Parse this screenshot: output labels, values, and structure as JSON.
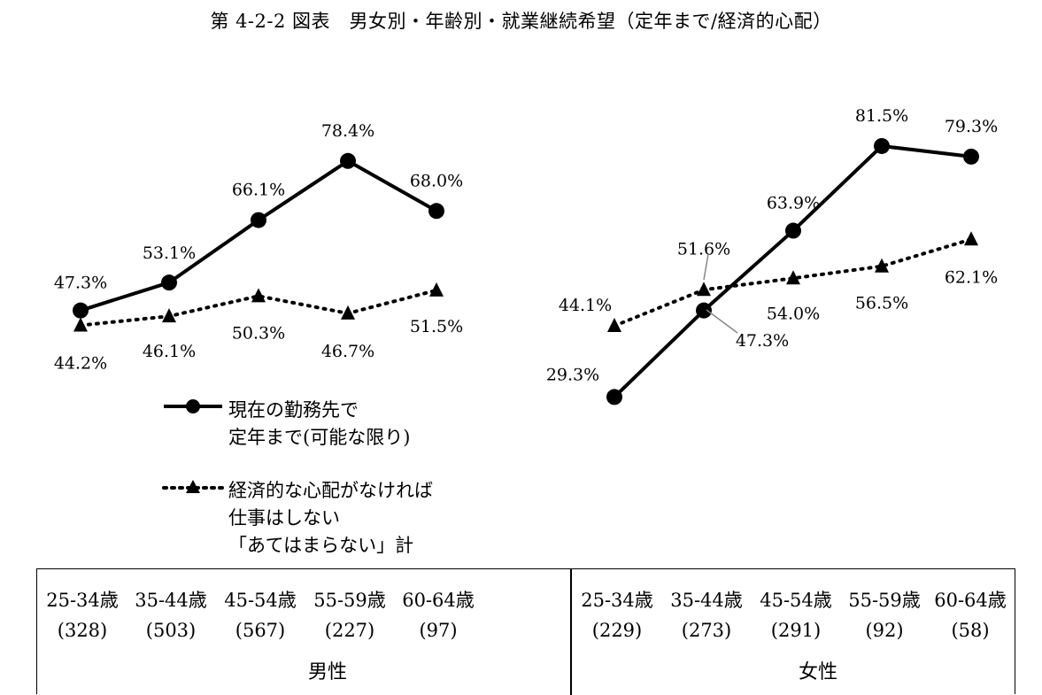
{
  "title": "第 4-2-2 図表　男女別・年齢別・就業継続希望（定年まで/経済的心配）",
  "legend": {
    "series1_line1": "現在の勤務先で",
    "series1_line2": "定年まで(可能な限り)",
    "series2_line1": "経済的な心配がなければ",
    "series2_line2": "仕事はしない",
    "series2_line3": "「あてはまらない」計"
  },
  "table": {
    "male": {
      "label": "男性",
      "categories": [
        {
          "age": "25-34歳",
          "n": "(328)"
        },
        {
          "age": "35-44歳",
          "n": "(503)"
        },
        {
          "age": "45-54歳",
          "n": "(567)"
        },
        {
          "age": "55-59歳",
          "n": "(227)"
        },
        {
          "age": "60-64歳",
          "n": "(97)"
        }
      ]
    },
    "female": {
      "label": "女性",
      "categories": [
        {
          "age": "25-34歳",
          "n": "(229)"
        },
        {
          "age": "35-44歳",
          "n": "(273)"
        },
        {
          "age": "45-54歳",
          "n": "(291)"
        },
        {
          "age": "55-59歳",
          "n": "(92)"
        },
        {
          "age": "60-64歳",
          "n": "(58)"
        }
      ]
    }
  },
  "chart_data": [
    {
      "type": "line",
      "panel": "男性",
      "categories": [
        "25-34歳",
        "35-44歳",
        "45-54歳",
        "55-59歳",
        "60-64歳"
      ],
      "series": [
        {
          "name": "現在の勤務先で定年まで(可能な限り)",
          "style": "solid-circle",
          "values": [
            47.3,
            53.1,
            66.1,
            78.4,
            68.0
          ],
          "labels": [
            "47.3%",
            "53.1%",
            "66.1%",
            "78.4%",
            "68.0%"
          ]
        },
        {
          "name": "経済的な心配がなければ仕事はしない「あてはまらない」計",
          "style": "dotted-triangle",
          "values": [
            44.2,
            46.1,
            50.3,
            46.7,
            51.5
          ],
          "labels": [
            "44.2%",
            "46.1%",
            "50.3%",
            "46.7%",
            "51.5%"
          ]
        }
      ]
    },
    {
      "type": "line",
      "panel": "女性",
      "categories": [
        "25-34歳",
        "35-44歳",
        "45-54歳",
        "55-59歳",
        "60-64歳"
      ],
      "series": [
        {
          "name": "現在の勤務先で定年まで(可能な限り)",
          "style": "solid-circle",
          "values": [
            29.3,
            47.3,
            63.9,
            81.5,
            79.3
          ],
          "labels": [
            "29.3%",
            "47.3%",
            "63.9%",
            "81.5%",
            "79.3%"
          ]
        },
        {
          "name": "経済的な心配がなければ仕事はしない「あてはまらない」計",
          "style": "dotted-triangle",
          "values": [
            44.1,
            51.6,
            54.0,
            56.5,
            62.1
          ],
          "labels": [
            "44.1%",
            "51.6%",
            "54.0%",
            "56.5%",
            "62.1%"
          ]
        }
      ]
    }
  ]
}
